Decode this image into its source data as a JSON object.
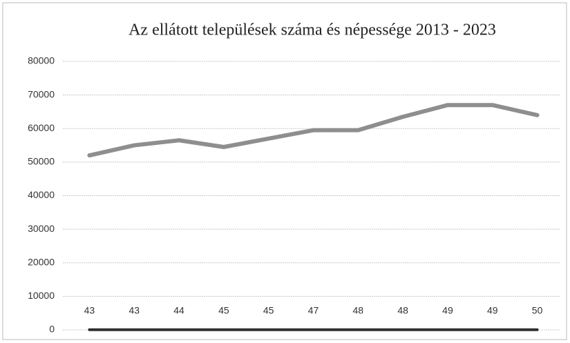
{
  "chart_data": {
    "type": "line",
    "title": "Az ellátott települések száma és népessége 2013 - 2023",
    "categories": [
      null,
      null,
      null,
      null,
      null,
      null,
      null,
      null,
      null,
      null,
      null
    ],
    "series": [
      {
        "color": "#8e8e8e",
        "values": [
          52000,
          55000,
          56500,
          54500,
          57000,
          59500,
          59500,
          63500,
          67000,
          67000,
          64000
        ]
      },
      {
        "color": "#2e2e2e",
        "values": [
          43,
          43,
          44,
          45,
          45,
          47,
          48,
          48,
          49,
          49,
          50
        ],
        "data_labels": true
      }
    ],
    "ylim": [
      0,
      80000
    ],
    "yticks": [
      0,
      10000,
      20000,
      30000,
      40000,
      50000,
      60000,
      70000,
      80000
    ],
    "grid": true
  }
}
